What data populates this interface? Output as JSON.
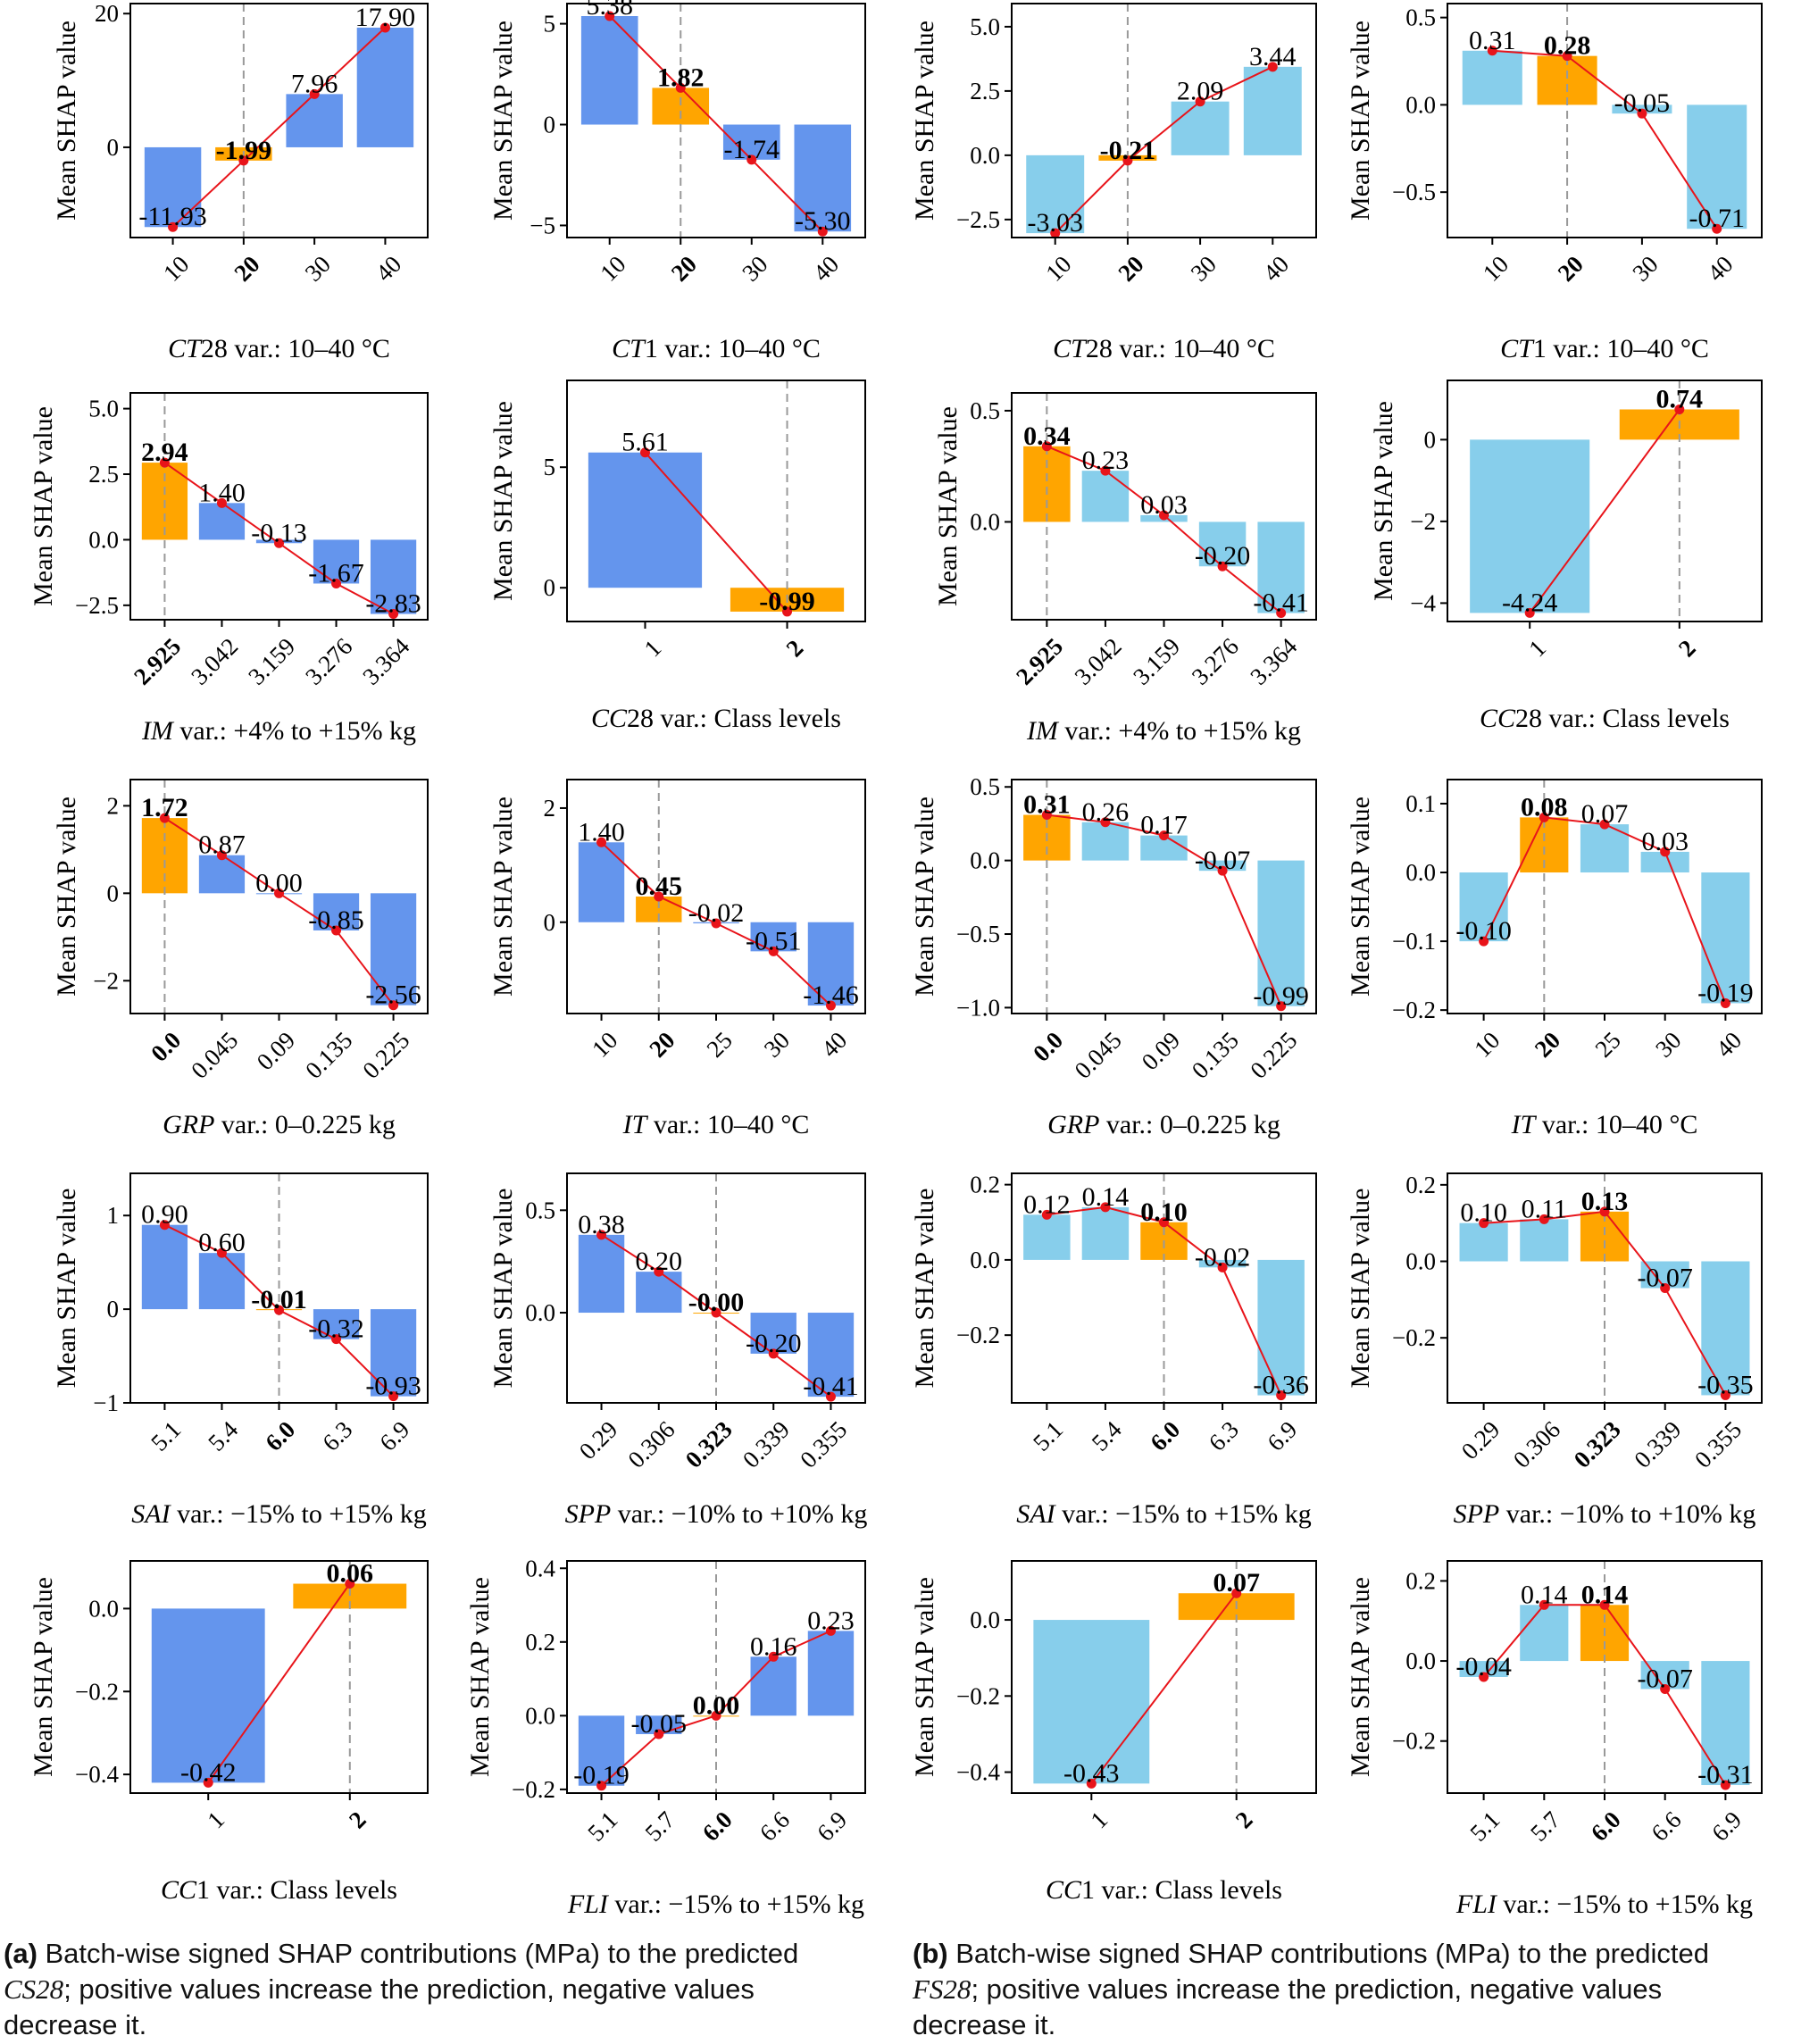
{
  "colors": {
    "base_a": "#6495ed",
    "base_b": "#87ceeb",
    "ref": "#ffa500",
    "line": "#e8141a",
    "dashed": "#999999"
  },
  "ylabel": "Mean SHAP value",
  "chart_data": [
    {
      "type": "bar",
      "panel": "a",
      "title": "",
      "xlabel_var": "CT",
      "xlabel_rest": "28 var.: 10–40 °C",
      "ylabel": "Mean SHAP value",
      "categories": [
        "10",
        "20",
        "30",
        "40"
      ],
      "values": [
        -11.93,
        -1.99,
        7.96,
        17.9
      ],
      "labels": [
        "-11.93",
        "-1.99",
        "7.96",
        "17.90"
      ],
      "ref_index": 1,
      "ylim": [
        -13.5,
        21.5
      ],
      "yticks": [
        0,
        20
      ],
      "ytick_labels": [
        "0",
        "20"
      ]
    },
    {
      "type": "bar",
      "panel": "a",
      "xlabel_var": "CT",
      "xlabel_rest": "1 var.: 10–40 °C",
      "ylabel": "Mean SHAP value",
      "categories": [
        "10",
        "20",
        "30",
        "40"
      ],
      "values": [
        5.38,
        1.82,
        -1.74,
        -5.3
      ],
      "labels": [
        "5.38",
        "1.82",
        "-1.74",
        "-5.30"
      ],
      "ref_index": 1,
      "ylim": [
        -5.6,
        6.0
      ],
      "yticks": [
        -5,
        0,
        5
      ],
      "ytick_labels": [
        "−5",
        "0",
        "5"
      ]
    },
    {
      "type": "bar",
      "panel": "b",
      "xlabel_var": "CT",
      "xlabel_rest": "28 var.: 10–40 °C",
      "ylabel": "Mean SHAP value",
      "categories": [
        "10",
        "20",
        "30",
        "40"
      ],
      "values": [
        -3.03,
        -0.21,
        2.09,
        3.44
      ],
      "labels": [
        "-3.03",
        "-0.21",
        "2.09",
        "3.44"
      ],
      "ref_index": 1,
      "ylim": [
        -3.2,
        5.9
      ],
      "yticks": [
        -2.5,
        0,
        2.5,
        5
      ],
      "ytick_labels": [
        "−2.5",
        "0.0",
        "2.5",
        "5.0"
      ]
    },
    {
      "type": "bar",
      "panel": "b",
      "xlabel_var": "CT",
      "xlabel_rest": "1 var.: 10–40 °C",
      "ylabel": "Mean SHAP value",
      "categories": [
        "10",
        "20",
        "30",
        "40"
      ],
      "values": [
        0.31,
        0.28,
        -0.05,
        -0.71
      ],
      "labels": [
        "0.31",
        "0.28",
        "-0.05",
        "-0.71"
      ],
      "ref_index": 1,
      "ylim": [
        -0.76,
        0.58
      ],
      "yticks": [
        -0.5,
        0,
        0.5
      ],
      "ytick_labels": [
        "−0.5",
        "0.0",
        "0.5"
      ]
    },
    {
      "type": "bar",
      "panel": "a",
      "xlabel_var": "IM",
      "xlabel_rest": " var.: +4% to +15% kg",
      "ylabel": "Mean SHAP value",
      "categories": [
        "2.925",
        "3.042",
        "3.159",
        "3.276",
        "3.364"
      ],
      "values": [
        2.94,
        1.4,
        -0.13,
        -1.67,
        -2.83
      ],
      "labels": [
        "2.94",
        "1.40",
        "-0.13",
        "-1.67",
        "-2.83"
      ],
      "ref_index": 0,
      "ylim": [
        -3.05,
        5.6
      ],
      "yticks": [
        -2.5,
        0,
        2.5,
        5
      ],
      "ytick_labels": [
        "−2.5",
        "0.0",
        "2.5",
        "5.0"
      ]
    },
    {
      "type": "bar",
      "panel": "a",
      "xlabel_var": "CC",
      "xlabel_rest": "28 var.: Class levels",
      "ylabel": "Mean SHAP value",
      "categories": [
        "1",
        "2"
      ],
      "values": [
        5.61,
        -0.99
      ],
      "labels": [
        "5.61",
        "-0.99"
      ],
      "ref_index": 1,
      "ylim": [
        -1.4,
        8.6
      ],
      "yticks": [
        0,
        5
      ],
      "ytick_labels": [
        "0",
        "5"
      ]
    },
    {
      "type": "bar",
      "panel": "b",
      "xlabel_var": "IM",
      "xlabel_rest": " var.: +4% to +15% kg",
      "ylabel": "Mean SHAP value",
      "categories": [
        "2.925",
        "3.042",
        "3.159",
        "3.276",
        "3.364"
      ],
      "values": [
        0.34,
        0.23,
        0.03,
        -0.2,
        -0.41
      ],
      "labels": [
        "0.34",
        "0.23",
        "0.03",
        "-0.20",
        "-0.41"
      ],
      "ref_index": 0,
      "ylim": [
        -0.44,
        0.58
      ],
      "yticks": [
        0,
        0.5
      ],
      "ytick_labels": [
        "0.0",
        "0.5"
      ]
    },
    {
      "type": "bar",
      "panel": "b",
      "xlabel_var": "CC",
      "xlabel_rest": "28 var.: Class levels",
      "ylabel": "Mean SHAP value",
      "categories": [
        "1",
        "2"
      ],
      "values": [
        -4.24,
        0.74
      ],
      "labels": [
        "-4.24",
        "0.74"
      ],
      "ref_index": 1,
      "ylim": [
        -4.45,
        1.45
      ],
      "yticks": [
        -4,
        -2,
        0
      ],
      "ytick_labels": [
        "−4",
        "−2",
        "0"
      ]
    },
    {
      "type": "bar",
      "panel": "a",
      "xlabel_var": "GRP",
      "xlabel_rest": " var.: 0–0.225 kg",
      "ylabel": "Mean SHAP value",
      "categories": [
        "0.0",
        "0.045",
        "0.09",
        "0.135",
        "0.225"
      ],
      "values": [
        1.72,
        0.87,
        0.0,
        -0.85,
        -2.56
      ],
      "labels": [
        "1.72",
        "0.87",
        "0.00",
        "-0.85",
        "-2.56"
      ],
      "ref_index": 0,
      "ylim": [
        -2.75,
        2.6
      ],
      "yticks": [
        -2,
        0,
        2
      ],
      "ytick_labels": [
        "−2",
        "0",
        "2"
      ]
    },
    {
      "type": "bar",
      "panel": "a",
      "xlabel_var": "IT",
      "xlabel_rest": " var.: 10–40 °C",
      "ylabel": "Mean SHAP value",
      "categories": [
        "10",
        "20",
        "25",
        "30",
        "40"
      ],
      "values": [
        1.4,
        0.45,
        -0.02,
        -0.51,
        -1.46
      ],
      "labels": [
        "1.40",
        "0.45",
        "-0.02",
        "-0.51",
        "-1.46"
      ],
      "ref_index": 1,
      "ylim": [
        -1.6,
        2.5
      ],
      "yticks": [
        0,
        2
      ],
      "ytick_labels": [
        "0",
        "2"
      ]
    },
    {
      "type": "bar",
      "panel": "b",
      "xlabel_var": "GRP",
      "xlabel_rest": " var.: 0–0.225 kg",
      "ylabel": "Mean SHAP value",
      "categories": [
        "0.0",
        "0.045",
        "0.09",
        "0.135",
        "0.225"
      ],
      "values": [
        0.31,
        0.26,
        0.17,
        -0.07,
        -0.99
      ],
      "labels": [
        "0.31",
        "0.26",
        "0.17",
        "-0.07",
        "-0.99"
      ],
      "ref_index": 0,
      "ylim": [
        -1.04,
        0.55
      ],
      "yticks": [
        -1,
        -0.5,
        0,
        0.5
      ],
      "ytick_labels": [
        "−1.0",
        "−0.5",
        "0.0",
        "0.5"
      ]
    },
    {
      "type": "bar",
      "panel": "b",
      "xlabel_var": "IT",
      "xlabel_rest": " var.: 10–40 °C",
      "ylabel": "Mean SHAP value",
      "categories": [
        "10",
        "20",
        "25",
        "30",
        "40"
      ],
      "values": [
        -0.1,
        0.08,
        0.07,
        0.03,
        -0.19
      ],
      "labels": [
        "-0.10",
        "0.08",
        "0.07",
        "0.03",
        "-0.19"
      ],
      "ref_index": 1,
      "ylim": [
        -0.205,
        0.135
      ],
      "yticks": [
        -0.2,
        -0.1,
        0,
        0.1
      ],
      "ytick_labels": [
        "−0.2",
        "−0.1",
        "0.0",
        "0.1"
      ]
    },
    {
      "type": "bar",
      "panel": "a",
      "xlabel_var": "SAI",
      "xlabel_rest": " var.: −15% to +15% kg",
      "ylabel": "Mean SHAP value",
      "categories": [
        "5.1",
        "5.4",
        "6.0",
        "6.3",
        "6.9"
      ],
      "values": [
        0.9,
        0.6,
        -0.01,
        -0.32,
        -0.93
      ],
      "labels": [
        "0.90",
        "0.60",
        "-0.01",
        "-0.32",
        "-0.93"
      ],
      "ref_index": 2,
      "ylim": [
        -1.0,
        1.45
      ],
      "yticks": [
        -1,
        0,
        1
      ],
      "ytick_labels": [
        "−1",
        "0",
        "1"
      ]
    },
    {
      "type": "bar",
      "panel": "a",
      "xlabel_var": "SPP",
      "xlabel_rest": " var.: −10% to +10% kg",
      "ylabel": "Mean SHAP value",
      "categories": [
        "0.29",
        "0.306",
        "0.323",
        "0.339",
        "0.355"
      ],
      "values": [
        0.38,
        0.2,
        -0.0,
        -0.2,
        -0.41
      ],
      "labels": [
        "0.38",
        "0.20",
        "-0.00",
        "-0.20",
        "-0.41"
      ],
      "ref_index": 2,
      "ylim": [
        -0.44,
        0.68
      ],
      "yticks": [
        0,
        0.5
      ],
      "ytick_labels": [
        "0.0",
        "0.5"
      ]
    },
    {
      "type": "bar",
      "panel": "b",
      "xlabel_var": "SAI",
      "xlabel_rest": " var.: −15% to +15% kg",
      "ylabel": "Mean SHAP value",
      "categories": [
        "5.1",
        "5.4",
        "6.0",
        "6.3",
        "6.9"
      ],
      "values": [
        0.12,
        0.14,
        0.1,
        -0.02,
        -0.36
      ],
      "labels": [
        "0.12",
        "0.14",
        "0.10",
        "-0.02",
        "-0.36"
      ],
      "ref_index": 2,
      "ylim": [
        -0.38,
        0.23
      ],
      "yticks": [
        -0.2,
        0,
        0.2
      ],
      "ytick_labels": [
        "−0.2",
        "0.0",
        "0.2"
      ]
    },
    {
      "type": "bar",
      "panel": "b",
      "xlabel_var": "SPP",
      "xlabel_rest": " var.: −10% to +10% kg",
      "ylabel": "Mean SHAP value",
      "categories": [
        "0.29",
        "0.306",
        "0.323",
        "0.339",
        "0.355"
      ],
      "values": [
        0.1,
        0.11,
        0.13,
        -0.07,
        -0.35
      ],
      "labels": [
        "0.10",
        "0.11",
        "0.13",
        "-0.07",
        "-0.35"
      ],
      "ref_index": 2,
      "ylim": [
        -0.37,
        0.23
      ],
      "yticks": [
        -0.2,
        0,
        0.2
      ],
      "ytick_labels": [
        "−0.2",
        "0.0",
        "0.2"
      ]
    },
    {
      "type": "bar",
      "panel": "a",
      "xlabel_var": "CC",
      "xlabel_rest": "1 var.: Class levels",
      "ylabel": "Mean SHAP value",
      "categories": [
        "1",
        "2"
      ],
      "values": [
        -0.42,
        0.06
      ],
      "labels": [
        "-0.42",
        "0.06"
      ],
      "ref_index": 1,
      "ylim": [
        -0.445,
        0.115
      ],
      "yticks": [
        -0.4,
        -0.2,
        0
      ],
      "ytick_labels": [
        "−0.4",
        "−0.2",
        "0.0"
      ]
    },
    {
      "type": "bar",
      "panel": "a",
      "xlabel_var": "FLI",
      "xlabel_rest": " var.: −15% to +15% kg",
      "ylabel": "Mean SHAP value",
      "categories": [
        "5.1",
        "5.7",
        "6.0",
        "6.6",
        "6.9"
      ],
      "values": [
        -0.19,
        -0.05,
        0.0,
        0.16,
        0.23
      ],
      "labels": [
        "-0.19",
        "-0.05",
        "0.00",
        "0.16",
        "0.23"
      ],
      "ref_index": 2,
      "ylim": [
        -0.21,
        0.42
      ],
      "yticks": [
        -0.2,
        0,
        0.2,
        0.4
      ],
      "ytick_labels": [
        "−0.2",
        "0.0",
        "0.2",
        "0.4"
      ]
    },
    {
      "type": "bar",
      "panel": "b",
      "xlabel_var": "CC",
      "xlabel_rest": "1 var.: Class levels",
      "ylabel": "Mean SHAP value",
      "categories": [
        "1",
        "2"
      ],
      "values": [
        -0.43,
        0.07
      ],
      "labels": [
        "-0.43",
        "0.07"
      ],
      "ref_index": 1,
      "ylim": [
        -0.455,
        0.155
      ],
      "yticks": [
        -0.4,
        -0.2,
        0
      ],
      "ytick_labels": [
        "−0.4",
        "−0.2",
        "0.0"
      ]
    },
    {
      "type": "bar",
      "panel": "b",
      "xlabel_var": "FLI",
      "xlabel_rest": " var.: −15% to +15% kg",
      "ylabel": "Mean SHAP value",
      "categories": [
        "5.1",
        "5.7",
        "6.0",
        "6.6",
        "6.9"
      ],
      "values": [
        -0.04,
        0.14,
        0.14,
        -0.07,
        -0.31
      ],
      "labels": [
        "-0.04",
        "0.14",
        "0.14",
        "-0.07",
        "-0.31"
      ],
      "ref_index": 2,
      "ylim": [
        -0.33,
        0.25
      ],
      "yticks": [
        -0.2,
        0,
        0.2
      ],
      "ytick_labels": [
        "−0.2",
        "0.0",
        "0.2"
      ]
    }
  ],
  "captions": {
    "a": {
      "tag": "(a)",
      "text1": " Batch-wise signed SHAP contributions (MPa) to the predicted ",
      "target": "CS28",
      "text2": "; positive values increase the prediction, negative values decrease it."
    },
    "b": {
      "tag": "(b)",
      "text1": " Batch-wise signed SHAP contributions (MPa) to the predicted ",
      "target": "FS28",
      "text2": "; positive values increase the prediction, negative values decrease it."
    }
  }
}
